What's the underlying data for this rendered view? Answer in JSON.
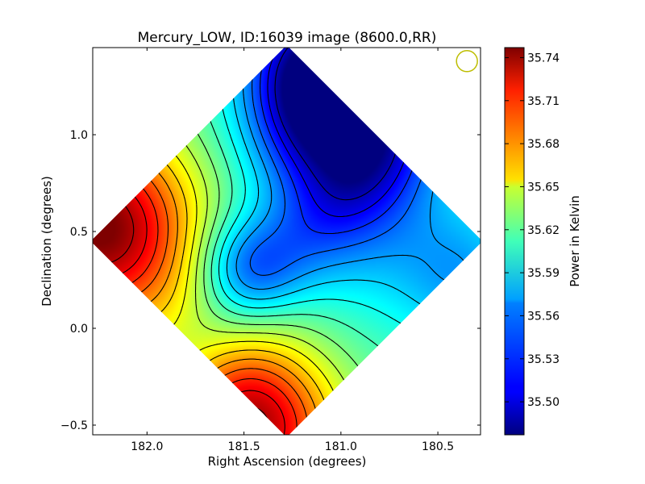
{
  "chart_data": {
    "type": "heatmap",
    "title": "Mercury_LOW, ID:16039 image (8600.0,RR)",
    "xlabel": "Right Ascension (degrees)",
    "ylabel": "Declination (degrees)",
    "xlim": [
      182.28,
      180.28
    ],
    "ylim": [
      -0.55,
      1.45
    ],
    "x_ticks": [
      {
        "value": 182.0,
        "label": "182.0"
      },
      {
        "value": 181.5,
        "label": "181.5"
      },
      {
        "value": 181.0,
        "label": "181.0"
      },
      {
        "value": 180.5,
        "label": "180.5"
      }
    ],
    "y_ticks": [
      {
        "value": -0.5,
        "label": "−0.5"
      },
      {
        "value": 0.0,
        "label": "0.0"
      },
      {
        "value": 0.5,
        "label": "0.5"
      },
      {
        "value": 1.0,
        "label": "1.0"
      }
    ],
    "colorbar": {
      "label": "Power in Kelvin",
      "range": [
        35.477,
        35.747
      ],
      "ticks": [
        "35.50",
        "35.53",
        "35.56",
        "35.59",
        "35.62",
        "35.65",
        "35.68",
        "35.71",
        "35.74"
      ],
      "colormap": "jet"
    },
    "footprint_center": [
      181.28,
      0.45
    ],
    "beam": {
      "ra": 180.35,
      "dec": 1.38,
      "color": "#bdbd00"
    },
    "features": [
      {
        "kind": "max",
        "ra": 182.25,
        "dec": 0.52,
        "amp": 0.15,
        "sigma": 0.35
      },
      {
        "kind": "max",
        "ra": 181.45,
        "dec": -0.52,
        "amp": 0.13,
        "sigma": 0.3
      },
      {
        "kind": "min",
        "ra": 181.05,
        "dec": 1.12,
        "amp": 0.11,
        "sigma": 0.28
      },
      {
        "kind": "min",
        "ra": 181.12,
        "dec": 1.4,
        "amp": 0.08,
        "sigma": 0.25
      },
      {
        "kind": "min",
        "ra": 181.5,
        "dec": 0.33,
        "amp": 0.05,
        "sigma": 0.18
      },
      {
        "kind": "min",
        "ra": 180.35,
        "dec": 0.25,
        "amp": 0.04,
        "sigma": 0.25
      },
      {
        "kind": "min",
        "ra": 180.9,
        "dec": 0.65,
        "amp": 0.05,
        "sigma": 0.35
      },
      {
        "kind": "max",
        "ra": 181.7,
        "dec": -0.1,
        "amp": 0.03,
        "sigma": 0.3
      }
    ],
    "base_level": 35.6
  }
}
